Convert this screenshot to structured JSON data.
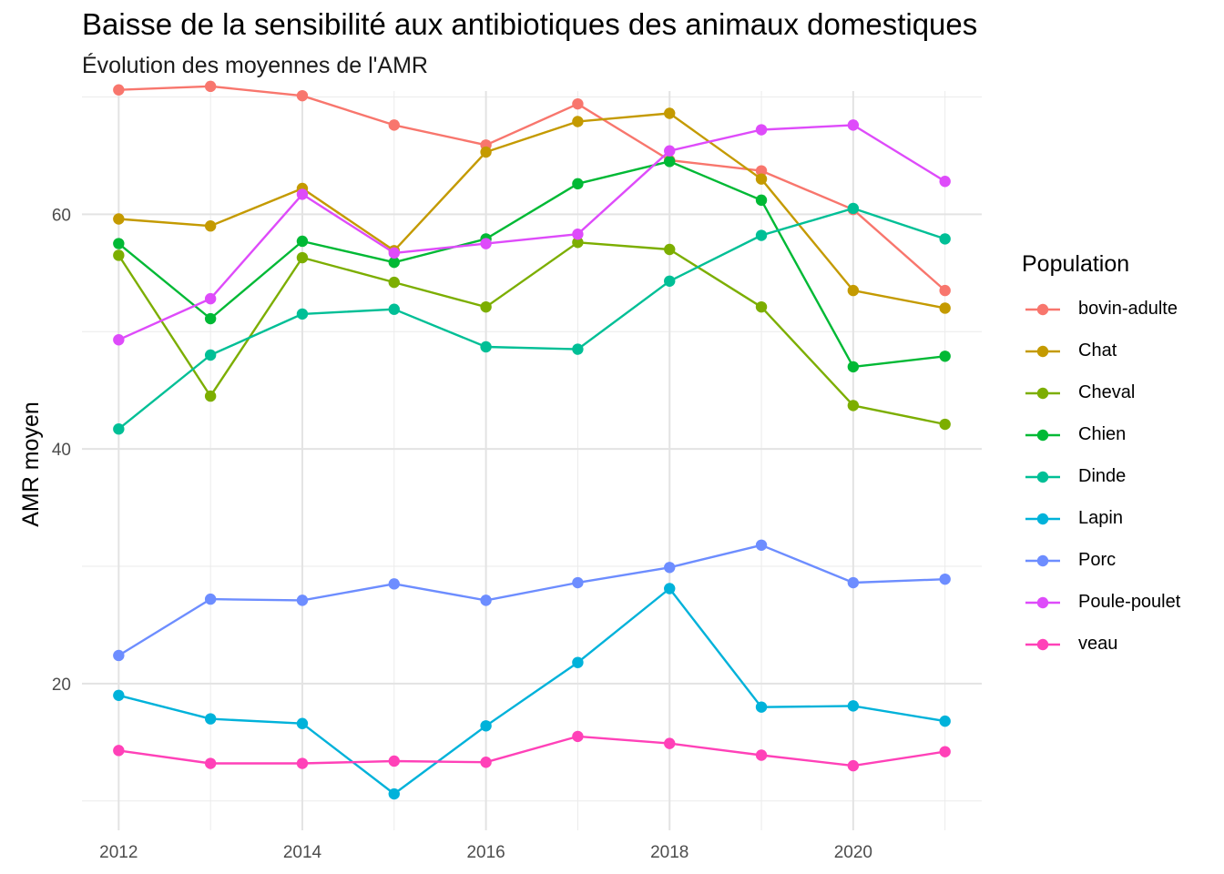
{
  "chart_data": {
    "type": "line",
    "title": "Baisse de la sensibilité aux antibiotiques des animaux domestiques",
    "subtitle": "Évolution des moyennes de l'AMR",
    "xlabel": "",
    "ylabel": "AMR moyen",
    "xlim": [
      2011.6,
      2021.4
    ],
    "ylim": [
      7.5,
      70.5
    ],
    "x_ticks": [
      2012,
      2014,
      2016,
      2018,
      2020
    ],
    "y_ticks": [
      20,
      40,
      60
    ],
    "grid": true,
    "legend_title": "Population",
    "legend_position": "right",
    "x": [
      2012,
      2013,
      2014,
      2015,
      2016,
      2017,
      2018,
      2019,
      2020,
      2021
    ],
    "series": [
      {
        "name": "bovin-adulte",
        "color": "#F8766D",
        "values": [
          70.6,
          70.9,
          70.1,
          67.6,
          65.9,
          69.4,
          64.6,
          63.7,
          60.4,
          53.5
        ]
      },
      {
        "name": "Chat",
        "color": "#C49A00",
        "values": [
          59.6,
          59.0,
          62.2,
          56.9,
          65.3,
          67.9,
          68.6,
          63.0,
          53.5,
          52.0
        ]
      },
      {
        "name": "Cheval",
        "color": "#7CAE00",
        "values": [
          56.5,
          44.5,
          56.3,
          54.2,
          52.1,
          57.6,
          57.0,
          52.1,
          43.7,
          42.1
        ]
      },
      {
        "name": "Chien",
        "color": "#00B935",
        "values": [
          57.5,
          51.1,
          57.7,
          55.9,
          57.9,
          62.6,
          64.5,
          61.2,
          47.0,
          47.9
        ]
      },
      {
        "name": "Dinde",
        "color": "#00BF96",
        "values": [
          41.7,
          48.0,
          51.5,
          51.9,
          48.7,
          48.5,
          54.3,
          58.2,
          60.5,
          57.9
        ]
      },
      {
        "name": "Lapin",
        "color": "#00B2DA",
        "values": [
          19.0,
          17.0,
          16.6,
          10.6,
          16.4,
          21.8,
          28.1,
          18.0,
          18.1,
          16.8
        ]
      },
      {
        "name": "Porc",
        "color": "#6D8DFF",
        "values": [
          22.4,
          27.2,
          27.1,
          28.5,
          27.1,
          28.6,
          29.9,
          31.8,
          28.6,
          28.9
        ]
      },
      {
        "name": "Poule-poulet",
        "color": "#DE4BFA",
        "values": [
          49.3,
          52.8,
          61.7,
          56.7,
          57.5,
          58.3,
          65.4,
          67.2,
          67.6,
          62.8
        ]
      },
      {
        "name": "veau",
        "color": "#FF41B8",
        "values": [
          14.3,
          13.2,
          13.2,
          13.4,
          13.3,
          15.5,
          14.9,
          13.9,
          13.0,
          14.2
        ]
      }
    ]
  }
}
